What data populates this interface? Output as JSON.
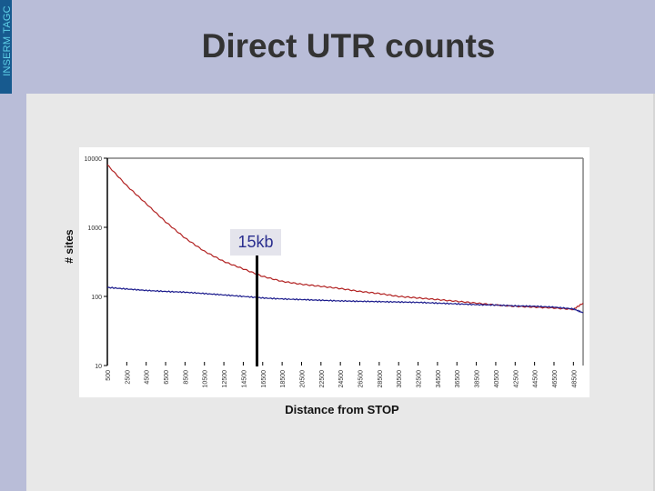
{
  "sidebar": {
    "label": "INSERM TAGC"
  },
  "slide": {
    "title": "Direct UTR counts"
  },
  "colors": {
    "background": "#b9bdd8",
    "sidebar": "#175a8f",
    "sidebar_text": "#5fd0e8",
    "panel": "#e8e8e8",
    "series_red": "#b22222",
    "series_blue": "#1a1a8c",
    "annotation_text": "#2b2f8f"
  },
  "chart_data": {
    "type": "line",
    "title": "Direct UTR counts",
    "xlabel": "Distance from STOP",
    "ylabel": "# sites",
    "yscale": "log",
    "ylim": [
      10,
      10000
    ],
    "y_ticks": [
      "10000",
      "1000",
      "100",
      "10"
    ],
    "x_ticks": [
      "500",
      "2500",
      "4500",
      "6500",
      "8500",
      "10500",
      "12500",
      "14500",
      "16500",
      "18500",
      "20500",
      "22500",
      "24500",
      "26500",
      "28500",
      "30500",
      "32500",
      "34500",
      "36500",
      "38500",
      "40500",
      "42500",
      "44500",
      "46500",
      "48500"
    ],
    "grid": false,
    "legend": null,
    "annotation": {
      "label": "15kb",
      "x": 15000
    },
    "x": [
      500,
      2500,
      4500,
      6500,
      8500,
      10500,
      12500,
      14500,
      16500,
      18500,
      20500,
      22500,
      24500,
      26500,
      28500,
      30500,
      32500,
      34500,
      36500,
      38500,
      40500,
      42500,
      44500,
      46500,
      48500,
      49500
    ],
    "series": [
      {
        "name": "red",
        "color": "#b22222",
        "values": [
          8000,
          4000,
          2200,
          1200,
          700,
          450,
          320,
          250,
          195,
          165,
          150,
          140,
          130,
          118,
          110,
          100,
          95,
          90,
          85,
          80,
          75,
          72,
          70,
          68,
          65,
          80
        ]
      },
      {
        "name": "blue",
        "color": "#1a1a8c",
        "values": [
          135,
          128,
          122,
          118,
          115,
          110,
          105,
          100,
          95,
          92,
          90,
          88,
          86,
          85,
          84,
          83,
          82,
          80,
          78,
          76,
          75,
          73,
          72,
          70,
          66,
          58
        ]
      }
    ]
  }
}
